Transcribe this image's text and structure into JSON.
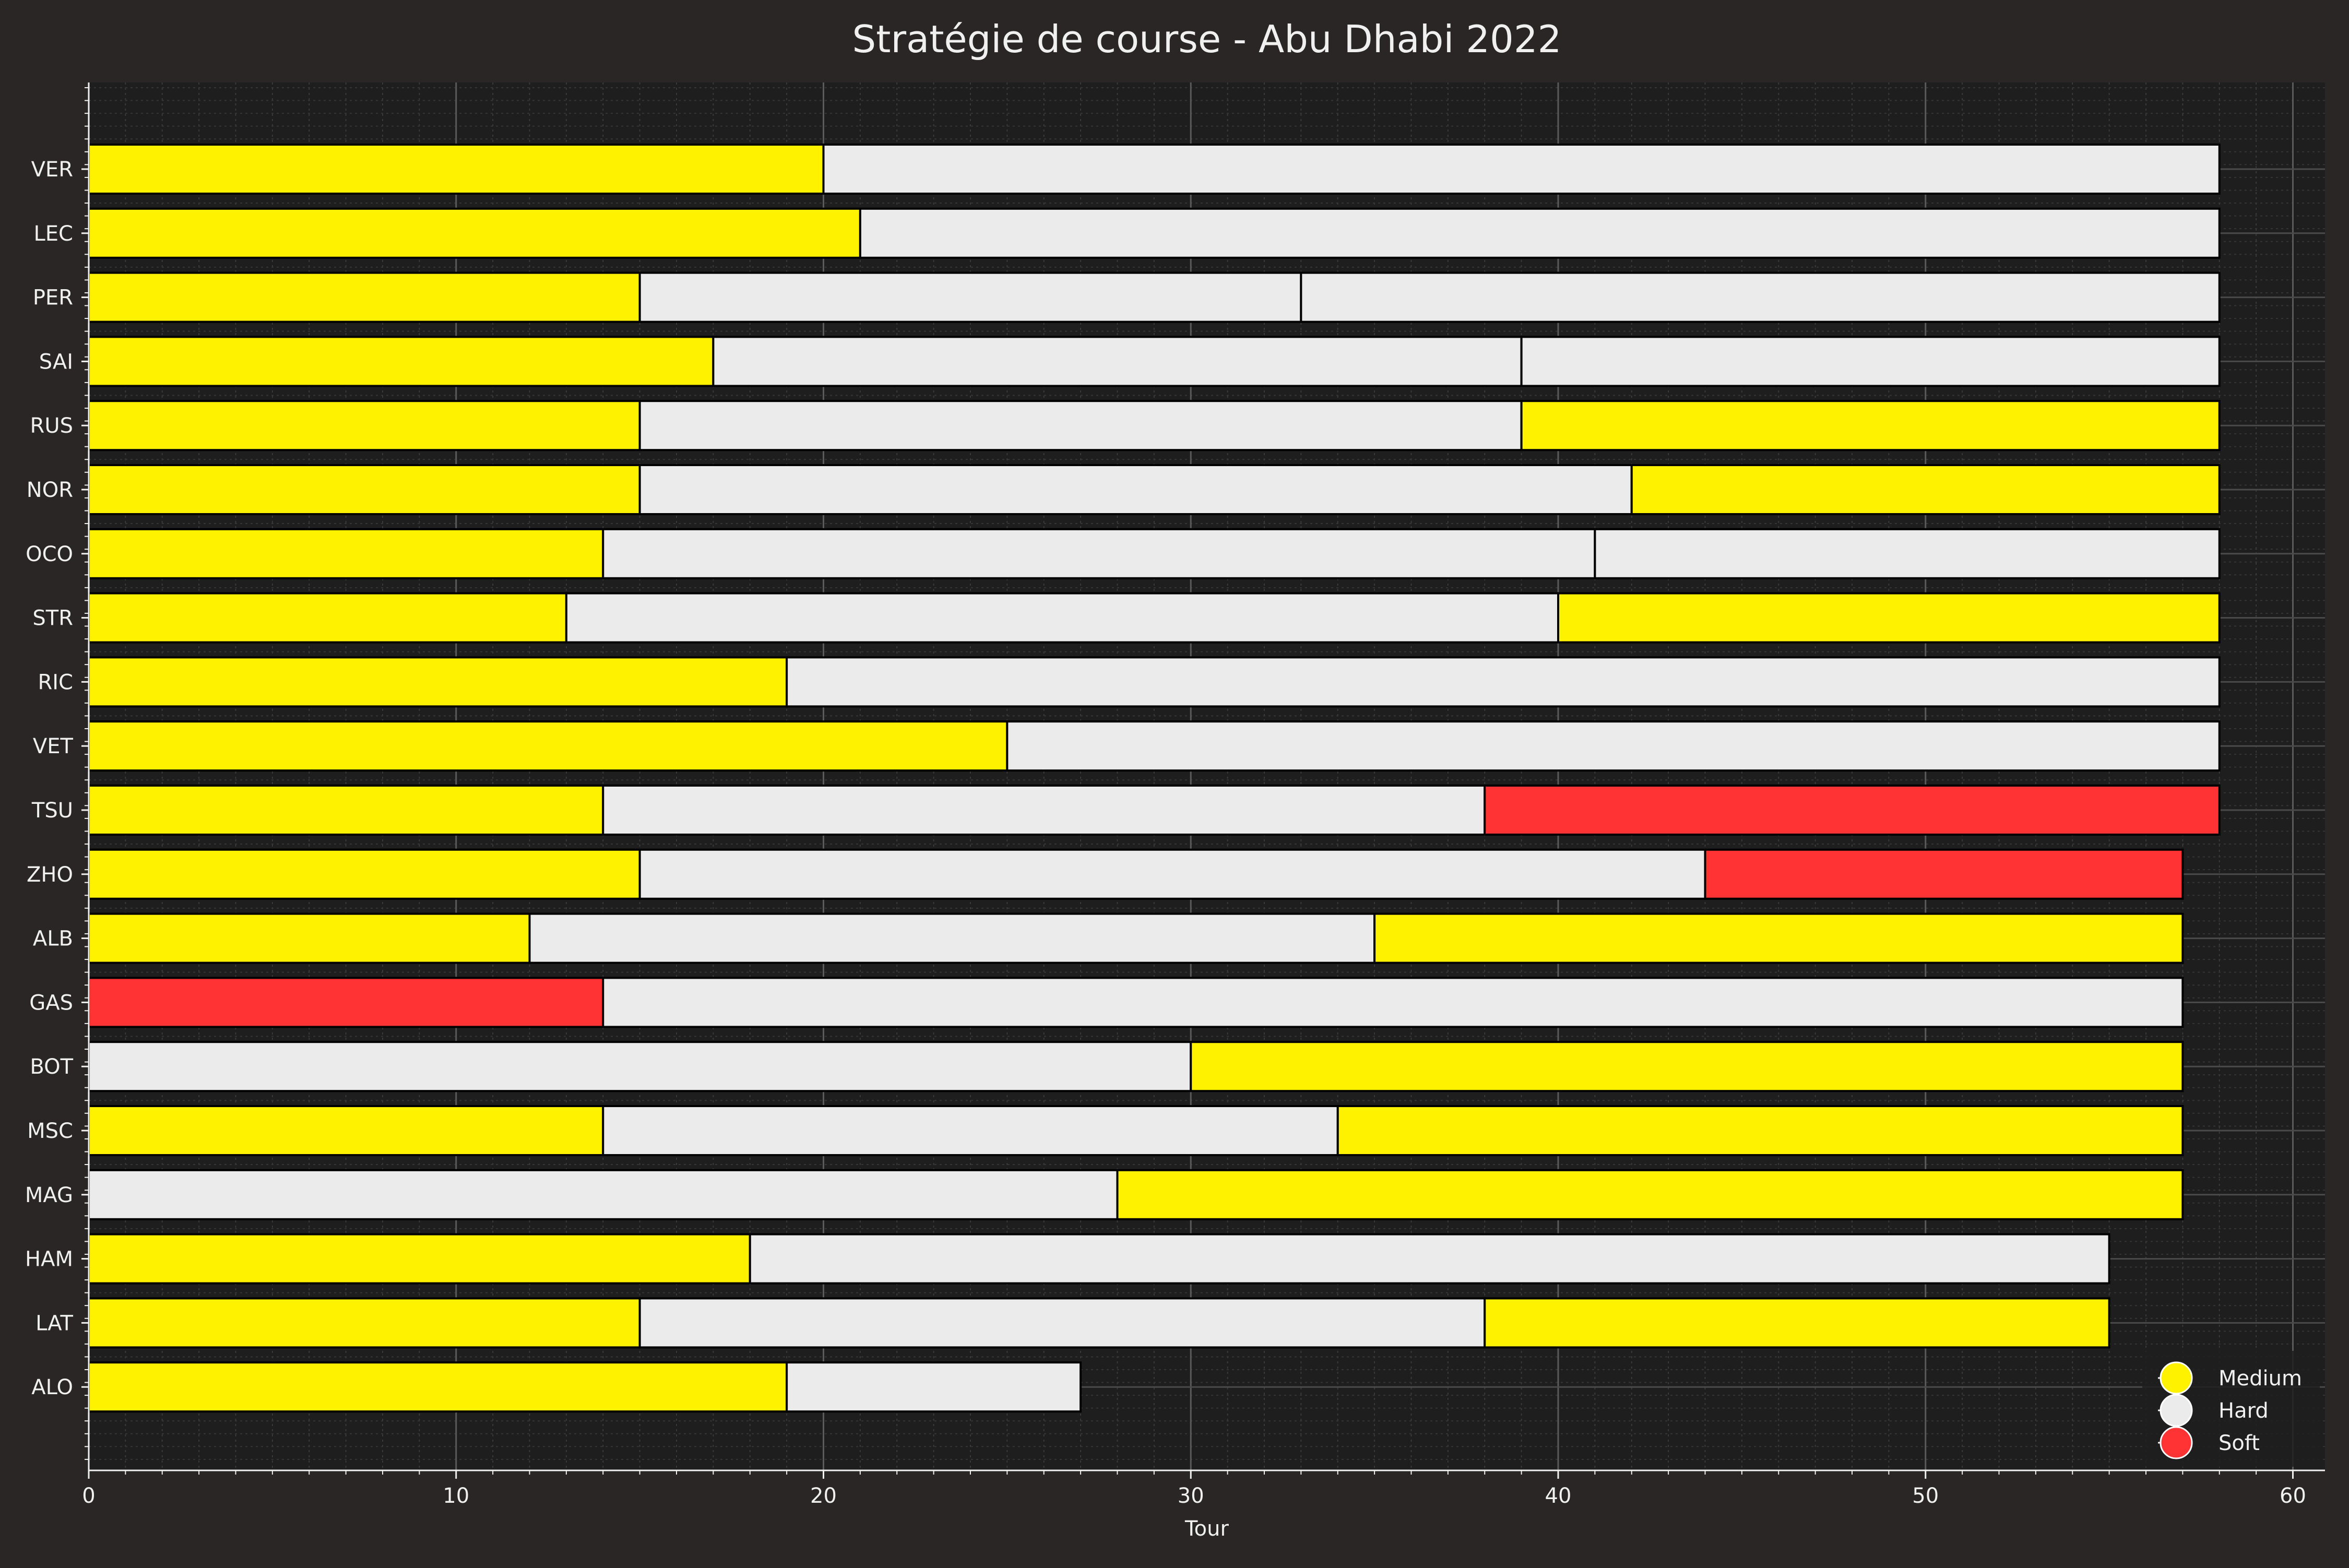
{
  "chart_data": {
    "type": "bar",
    "orientation": "horizontal",
    "stacked": true,
    "title": "Stratégie de course - Abu Dhabi 2022",
    "xlabel": "Tour",
    "ylabel": "",
    "xlim": [
      0,
      60.5
    ],
    "xticks": [
      0,
      10,
      20,
      30,
      40,
      50,
      60
    ],
    "grid": true,
    "legend_position": "bottom-right",
    "compounds": {
      "Medium": "#FFF200",
      "Hard": "#EBEBEB",
      "Soft": "#FF3333"
    },
    "legend": [
      "Medium",
      "Hard",
      "Soft"
    ],
    "drivers": [
      {
        "driver": "VER",
        "stints": [
          {
            "compound": "Medium",
            "start": 0,
            "end": 20
          },
          {
            "compound": "Hard",
            "start": 20,
            "end": 58
          }
        ]
      },
      {
        "driver": "LEC",
        "stints": [
          {
            "compound": "Medium",
            "start": 0,
            "end": 21
          },
          {
            "compound": "Hard",
            "start": 21,
            "end": 58
          }
        ]
      },
      {
        "driver": "PER",
        "stints": [
          {
            "compound": "Medium",
            "start": 0,
            "end": 15
          },
          {
            "compound": "Hard",
            "start": 15,
            "end": 33
          },
          {
            "compound": "Hard",
            "start": 33,
            "end": 58
          }
        ]
      },
      {
        "driver": "SAI",
        "stints": [
          {
            "compound": "Medium",
            "start": 0,
            "end": 17
          },
          {
            "compound": "Hard",
            "start": 17,
            "end": 39
          },
          {
            "compound": "Hard",
            "start": 39,
            "end": 58
          }
        ]
      },
      {
        "driver": "RUS",
        "stints": [
          {
            "compound": "Medium",
            "start": 0,
            "end": 15
          },
          {
            "compound": "Hard",
            "start": 15,
            "end": 39
          },
          {
            "compound": "Medium",
            "start": 39,
            "end": 58
          }
        ]
      },
      {
        "driver": "NOR",
        "stints": [
          {
            "compound": "Medium",
            "start": 0,
            "end": 15
          },
          {
            "compound": "Hard",
            "start": 15,
            "end": 42
          },
          {
            "compound": "Medium",
            "start": 42,
            "end": 58
          }
        ]
      },
      {
        "driver": "OCO",
        "stints": [
          {
            "compound": "Medium",
            "start": 0,
            "end": 14
          },
          {
            "compound": "Hard",
            "start": 14,
            "end": 41
          },
          {
            "compound": "Hard",
            "start": 41,
            "end": 58
          }
        ]
      },
      {
        "driver": "STR",
        "stints": [
          {
            "compound": "Medium",
            "start": 0,
            "end": 13
          },
          {
            "compound": "Hard",
            "start": 13,
            "end": 40
          },
          {
            "compound": "Medium",
            "start": 40,
            "end": 58
          }
        ]
      },
      {
        "driver": "RIC",
        "stints": [
          {
            "compound": "Medium",
            "start": 0,
            "end": 19
          },
          {
            "compound": "Hard",
            "start": 19,
            "end": 58
          }
        ]
      },
      {
        "driver": "VET",
        "stints": [
          {
            "compound": "Medium",
            "start": 0,
            "end": 25
          },
          {
            "compound": "Hard",
            "start": 25,
            "end": 58
          }
        ]
      },
      {
        "driver": "TSU",
        "stints": [
          {
            "compound": "Medium",
            "start": 0,
            "end": 14
          },
          {
            "compound": "Hard",
            "start": 14,
            "end": 38
          },
          {
            "compound": "Soft",
            "start": 38,
            "end": 58
          }
        ]
      },
      {
        "driver": "ZHO",
        "stints": [
          {
            "compound": "Medium",
            "start": 0,
            "end": 15
          },
          {
            "compound": "Hard",
            "start": 15,
            "end": 44
          },
          {
            "compound": "Soft",
            "start": 44,
            "end": 57
          }
        ]
      },
      {
        "driver": "ALB",
        "stints": [
          {
            "compound": "Medium",
            "start": 0,
            "end": 12
          },
          {
            "compound": "Hard",
            "start": 12,
            "end": 35
          },
          {
            "compound": "Medium",
            "start": 35,
            "end": 57
          }
        ]
      },
      {
        "driver": "GAS",
        "stints": [
          {
            "compound": "Soft",
            "start": 0,
            "end": 14
          },
          {
            "compound": "Hard",
            "start": 14,
            "end": 57
          }
        ]
      },
      {
        "driver": "BOT",
        "stints": [
          {
            "compound": "Hard",
            "start": 0,
            "end": 30
          },
          {
            "compound": "Medium",
            "start": 30,
            "end": 57
          }
        ]
      },
      {
        "driver": "MSC",
        "stints": [
          {
            "compound": "Medium",
            "start": 0,
            "end": 14
          },
          {
            "compound": "Hard",
            "start": 14,
            "end": 34
          },
          {
            "compound": "Medium",
            "start": 34,
            "end": 57
          }
        ]
      },
      {
        "driver": "MAG",
        "stints": [
          {
            "compound": "Hard",
            "start": 0,
            "end": 28
          },
          {
            "compound": "Medium",
            "start": 28,
            "end": 57
          }
        ]
      },
      {
        "driver": "HAM",
        "stints": [
          {
            "compound": "Medium",
            "start": 0,
            "end": 18
          },
          {
            "compound": "Hard",
            "start": 18,
            "end": 55
          }
        ]
      },
      {
        "driver": "LAT",
        "stints": [
          {
            "compound": "Medium",
            "start": 0,
            "end": 15
          },
          {
            "compound": "Hard",
            "start": 15,
            "end": 38
          },
          {
            "compound": "Medium",
            "start": 38,
            "end": 55
          }
        ]
      },
      {
        "driver": "ALO",
        "stints": [
          {
            "compound": "Medium",
            "start": 0,
            "end": 19
          },
          {
            "compound": "Hard",
            "start": 19,
            "end": 27
          }
        ]
      }
    ]
  }
}
